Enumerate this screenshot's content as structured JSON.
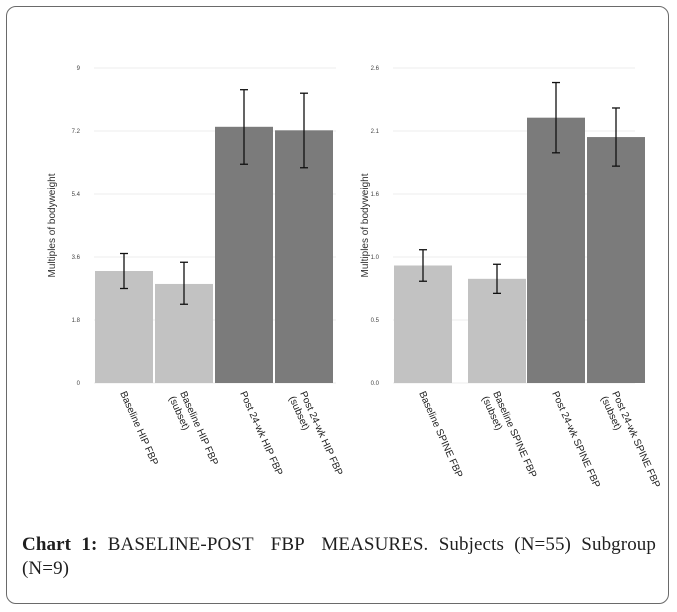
{
  "caption": {
    "label": "Chart 1:",
    "title": "BASELINE-POST FBP MEASURES.",
    "text": "Subjects (N=55) Subgroup (N=9)"
  },
  "colors": {
    "baseline": "#c2c2c2",
    "post": "#7b7b7b",
    "grid": "#ececec",
    "error": "#111111"
  },
  "chart_data": [
    {
      "type": "bar",
      "ylabel": "Multiples of bodyweight",
      "ylim": [
        0,
        9
      ],
      "yticks": [
        "0",
        "1.8",
        "3.6",
        "5.4",
        "7.2",
        "9"
      ],
      "categories": [
        "Baseline HIP FBP",
        "Baseline HIP FBP (subset)",
        "Post 24-wk HIP FBP",
        "Post 24-wk HIP FBP (subset)"
      ],
      "category_lines": [
        [
          "Baseline HIP FBP"
        ],
        [
          "Baseline HIP FBP",
          "(subset)"
        ],
        [
          "Post 24-wk HIP FBP"
        ],
        [
          "Post 24-wk HIP FBP",
          "(subset)"
        ]
      ],
      "values": [
        3.2,
        2.83,
        7.32,
        7.22
      ],
      "error_low": [
        2.7,
        2.25,
        6.25,
        6.15
      ],
      "error_high": [
        3.7,
        3.45,
        8.38,
        8.28
      ],
      "bar_color_keys": [
        "baseline",
        "baseline",
        "post",
        "post"
      ],
      "grid": true
    },
    {
      "type": "bar",
      "ylabel": "Multiples of bodyweight",
      "ylim": [
        0,
        2.6
      ],
      "yticks": [
        "0.0",
        "0.5",
        "1.0",
        "1.6",
        "2.1",
        "2.6"
      ],
      "categories": [
        "Baseline SPINE FBP",
        "Baseline SPINE FBP (subset)",
        "Post 24-wk SPINE FBP",
        "Post 24-wk SPINE FBP (subset)"
      ],
      "category_lines": [
        [
          "Baseline SPINE FBP"
        ],
        [
          "Baseline SPINE FBP",
          "(subset)"
        ],
        [
          "Post 24-wk SPINE FBP"
        ],
        [
          "Post 24-wk SPINE FBP",
          "(subset)"
        ]
      ],
      "values": [
        0.97,
        0.86,
        2.19,
        2.03
      ],
      "error_low": [
        0.84,
        0.74,
        1.9,
        1.79
      ],
      "error_high": [
        1.1,
        0.98,
        2.48,
        2.27
      ],
      "bar_color_keys": [
        "baseline",
        "baseline",
        "post",
        "post"
      ],
      "grid": true
    }
  ]
}
